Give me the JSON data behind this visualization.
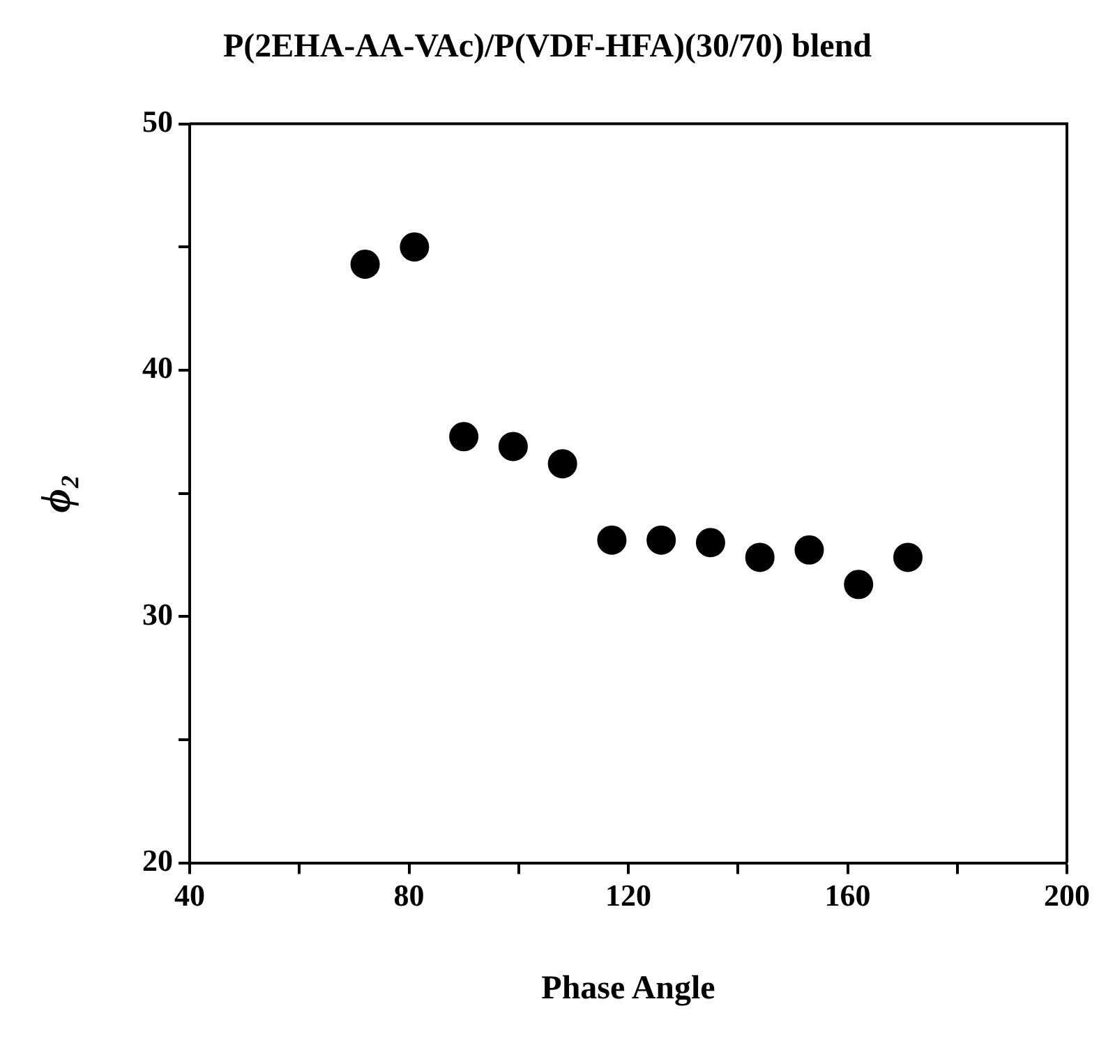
{
  "chart_data": {
    "type": "scatter",
    "title": "P(2EHA-AA-VAc)/P(VDF-HFA)(30/70) blend",
    "xlabel": "Phase Angle",
    "ylabel": "ϕ₂",
    "x": [
      72,
      81,
      90,
      99,
      108,
      117,
      126,
      135,
      144,
      153,
      162,
      171
    ],
    "series": [
      {
        "color": "#000000",
        "values": [
          44.3,
          45.0,
          37.3,
          36.9,
          36.2,
          33.1,
          33.1,
          33.0,
          32.4,
          32.7,
          31.3,
          32.4
        ]
      }
    ],
    "xlim": [
      40,
      200
    ],
    "xticks": [
      40,
      {
        "value": 60,
        "label": null
      },
      80,
      {
        "value": 100,
        "label": null
      },
      120,
      {
        "value": 140,
        "label": null
      },
      160,
      {
        "value": 180,
        "label": null
      },
      200
    ],
    "ylim": [
      20,
      50
    ],
    "yticks": [
      20,
      {
        "value": 25,
        "label": null
      },
      30,
      {
        "value": 35,
        "label": null
      },
      40,
      {
        "value": 45,
        "label": null
      },
      50
    ],
    "grid": false,
    "legend": false,
    "marker": "circle"
  }
}
